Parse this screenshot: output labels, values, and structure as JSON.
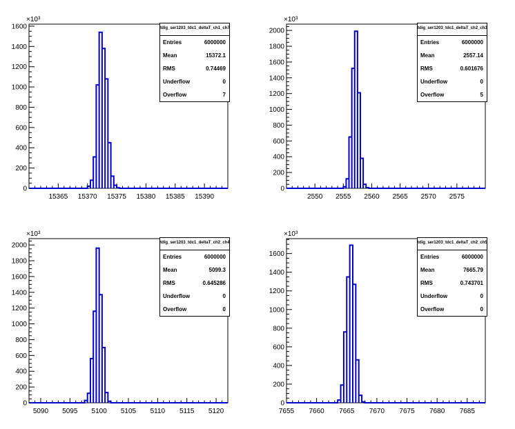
{
  "exponent_label": "×10³",
  "stats_labels": [
    "Entries",
    "Mean",
    "RMS",
    "Underflow",
    "Overflow"
  ],
  "line_color": "#0000cc",
  "chart_data": [
    {
      "type": "histogram",
      "title": "tdig_ser1203_tdc1_deltaT_ch1_ch7",
      "xlim": [
        15360,
        15394
      ],
      "ylim": [
        0,
        1620
      ],
      "x_ticks": [
        15365,
        15370,
        15375,
        15380,
        15385,
        15390
      ],
      "y_ticks": [
        0,
        200,
        400,
        600,
        800,
        1000,
        1200,
        1400,
        1600
      ],
      "bins": [
        {
          "x": 15370.0,
          "y": 20
        },
        {
          "x": 15370.5,
          "y": 80
        },
        {
          "x": 15371.0,
          "y": 310
        },
        {
          "x": 15371.5,
          "y": 1020
        },
        {
          "x": 15372.0,
          "y": 1540
        },
        {
          "x": 15372.5,
          "y": 1380
        },
        {
          "x": 15373.0,
          "y": 1080
        },
        {
          "x": 15373.5,
          "y": 450
        },
        {
          "x": 15374.0,
          "y": 120
        },
        {
          "x": 15374.5,
          "y": 30
        },
        {
          "x": 15375.0,
          "y": 5
        }
      ],
      "bin_width": 0.5,
      "stats": {
        "Entries": "6000000",
        "Mean": "15372.1",
        "RMS": "0.74469",
        "Underflow": "0",
        "Overflow": "7"
      }
    },
    {
      "type": "histogram",
      "title": "tdig_ser1203_tdc1_deltaT_ch2_ch3",
      "xlim": [
        2545,
        2580
      ],
      "ylim": [
        0,
        2080
      ],
      "x_ticks": [
        2550,
        2555,
        2560,
        2565,
        2570,
        2575
      ],
      "y_ticks": [
        0,
        200,
        400,
        600,
        800,
        1000,
        1200,
        1400,
        1600,
        1800,
        2000
      ],
      "bins": [
        {
          "x": 2555.0,
          "y": 20
        },
        {
          "x": 2555.5,
          "y": 120
        },
        {
          "x": 2556.0,
          "y": 650
        },
        {
          "x": 2556.5,
          "y": 1520
        },
        {
          "x": 2557.0,
          "y": 1990
        },
        {
          "x": 2557.5,
          "y": 1210
        },
        {
          "x": 2558.0,
          "y": 380
        },
        {
          "x": 2558.5,
          "y": 50
        },
        {
          "x": 2559.0,
          "y": 8
        }
      ],
      "bin_width": 0.5,
      "stats": {
        "Entries": "6000000",
        "Mean": "2557.14",
        "RMS": "0.601676",
        "Underflow": "0",
        "Overflow": "5"
      }
    },
    {
      "type": "histogram",
      "title": "tdig_ser1203_tdc1_deltaT_ch2_ch4",
      "xlim": [
        5088,
        5122
      ],
      "ylim": [
        0,
        2080
      ],
      "x_ticks": [
        5090,
        5095,
        5100,
        5105,
        5110,
        5115,
        5120
      ],
      "y_ticks": [
        0,
        200,
        400,
        600,
        800,
        1000,
        1200,
        1400,
        1600,
        1800,
        2000
      ],
      "bins": [
        {
          "x": 5097.5,
          "y": 30
        },
        {
          "x": 5098.0,
          "y": 120
        },
        {
          "x": 5098.5,
          "y": 560
        },
        {
          "x": 5099.0,
          "y": 1160
        },
        {
          "x": 5099.5,
          "y": 1960
        },
        {
          "x": 5100.0,
          "y": 1370
        },
        {
          "x": 5100.5,
          "y": 700
        },
        {
          "x": 5101.0,
          "y": 130
        },
        {
          "x": 5101.5,
          "y": 20
        }
      ],
      "bin_width": 0.5,
      "stats": {
        "Entries": "6000000",
        "Mean": "5099.3",
        "RMS": "0.645286",
        "Underflow": "0",
        "Overflow": "0"
      }
    },
    {
      "type": "histogram",
      "title": "tdig_ser1203_tdc1_deltaT_ch2_ch5",
      "xlim": [
        7655,
        7688
      ],
      "ylim": [
        0,
        1760
      ],
      "x_ticks": [
        7655,
        7660,
        7665,
        7670,
        7675,
        7680,
        7685
      ],
      "y_ticks": [
        0,
        200,
        400,
        600,
        800,
        1000,
        1200,
        1400,
        1600
      ],
      "bins": [
        {
          "x": 7663.5,
          "y": 30
        },
        {
          "x": 7664.0,
          "y": 190
        },
        {
          "x": 7664.5,
          "y": 760
        },
        {
          "x": 7665.0,
          "y": 1350
        },
        {
          "x": 7665.5,
          "y": 1690
        },
        {
          "x": 7666.0,
          "y": 1270
        },
        {
          "x": 7666.5,
          "y": 460
        },
        {
          "x": 7667.0,
          "y": 80
        },
        {
          "x": 7667.5,
          "y": 10
        }
      ],
      "bin_width": 0.5,
      "stats": {
        "Entries": "6000000",
        "Mean": "7665.79",
        "RMS": "0.743701",
        "Underflow": "0",
        "Overflow": "0"
      }
    }
  ]
}
